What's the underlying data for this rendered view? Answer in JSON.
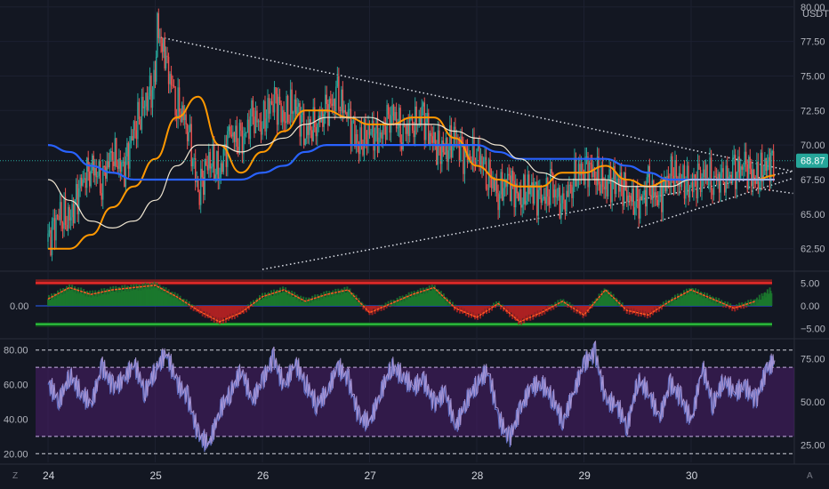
{
  "header": {
    "currency": "USDT"
  },
  "price_axis": {
    "ticks": [
      "80.00",
      "77.50",
      "75.00",
      "72.50",
      "70.00",
      "67.50",
      "65.00",
      "62.50"
    ],
    "current_price": "68.87"
  },
  "macd_axis": {
    "ticks": [
      "5.00",
      "0.00",
      "−5.00"
    ],
    "left_label": "0.00"
  },
  "rsi_axis": {
    "right_ticks": [
      "75.00",
      "50.00",
      "25.00"
    ],
    "left_ticks": [
      "80.00",
      "60.00",
      "40.00",
      "20.00"
    ]
  },
  "time_axis": {
    "ticks": [
      "24",
      "25",
      "26",
      "27",
      "28",
      "29",
      "30"
    ]
  },
  "corner_buttons": {
    "left": "Z",
    "right": "A"
  },
  "colors": {
    "background": "#131722",
    "up_candle": "#26a69a",
    "down_candle": "#ef5350",
    "ma_orange": "#ff9800",
    "ma_blue": "#2962ff",
    "ma_cream": "#f0e6d2",
    "rsi_line": "#b39ddb",
    "rsi_band": "#4a1d6a",
    "macd_green": "#1b7a2e",
    "macd_red": "#b22222",
    "price_tag": "#26a69a"
  },
  "chart_data": [
    {
      "type": "candlestick",
      "title": "",
      "x_ticks": [
        "24",
        "25",
        "26",
        "27",
        "28",
        "29",
        "30"
      ],
      "ylim": [
        61.0,
        80.5
      ],
      "current_price": 68.87,
      "close_series": {
        "x_days": [
          24.0,
          24.1,
          24.2,
          24.3,
          24.4,
          24.5,
          24.6,
          24.7,
          24.8,
          24.9,
          25.0,
          25.02,
          25.1,
          25.2,
          25.3,
          25.4,
          25.5,
          25.6,
          25.7,
          25.8,
          25.9,
          26.0,
          26.1,
          26.2,
          26.3,
          26.4,
          26.5,
          26.6,
          26.7,
          26.8,
          26.9,
          27.0,
          27.1,
          27.2,
          27.3,
          27.4,
          27.5,
          27.6,
          27.7,
          27.8,
          27.9,
          28.0,
          28.1,
          28.2,
          28.3,
          28.4,
          28.5,
          28.6,
          28.7,
          28.8,
          28.9,
          29.0,
          29.1,
          29.2,
          29.3,
          29.4,
          29.5,
          29.6,
          29.7,
          29.8,
          29.9,
          30.0,
          30.1,
          30.2,
          30.3,
          30.4,
          30.5,
          30.6,
          30.7,
          30.78
        ],
        "close": [
          63.0,
          65.0,
          64.5,
          67.0,
          68.5,
          67.5,
          69.5,
          68.0,
          71.0,
          73.0,
          74.5,
          78.5,
          76.0,
          73.0,
          71.5,
          66.5,
          69.0,
          68.0,
          71.0,
          70.0,
          72.0,
          71.5,
          73.5,
          72.0,
          73.0,
          71.0,
          71.5,
          72.5,
          73.5,
          72.0,
          70.0,
          71.0,
          70.5,
          72.5,
          71.0,
          71.5,
          72.0,
          70.0,
          69.5,
          70.5,
          69.0,
          69.5,
          68.0,
          66.5,
          67.5,
          66.0,
          67.0,
          66.0,
          67.0,
          65.5,
          67.5,
          68.5,
          68.0,
          67.0,
          67.5,
          66.5,
          65.5,
          67.0,
          66.0,
          68.0,
          67.5,
          67.0,
          68.0,
          67.5,
          67.5,
          68.0,
          68.5,
          67.5,
          68.5,
          68.87
        ]
      },
      "moving_averages": [
        {
          "color": "#ff9800",
          "x_days": [
            24.0,
            24.2,
            24.4,
            24.6,
            24.8,
            25.0,
            25.2,
            25.4,
            25.6,
            25.8,
            26.0,
            26.2,
            26.4,
            26.6,
            26.8,
            27.0,
            27.2,
            27.4,
            27.6,
            27.8,
            28.0,
            28.2,
            28.4,
            28.6,
            28.8,
            29.0,
            29.2,
            29.4,
            29.6,
            29.8,
            30.0,
            30.2,
            30.4,
            30.6,
            30.78
          ],
          "y": [
            62.5,
            62.5,
            63.5,
            65.5,
            67.0,
            69.0,
            72.0,
            73.5,
            70.0,
            68.0,
            69.5,
            71.0,
            72.5,
            72.5,
            72.0,
            71.5,
            71.5,
            72.0,
            72.0,
            70.5,
            68.5,
            67.5,
            67.0,
            67.0,
            68.0,
            68.0,
            68.5,
            67.5,
            67.0,
            67.5,
            67.5,
            67.5,
            67.5,
            67.5,
            67.8
          ]
        },
        {
          "color": "#2962ff",
          "x_days": [
            24.0,
            24.2,
            24.4,
            24.6,
            24.8,
            25.0,
            25.2,
            25.4,
            25.6,
            25.8,
            26.0,
            26.2,
            26.4,
            26.6,
            26.8,
            27.0,
            27.2,
            27.4,
            27.6,
            27.8,
            28.0,
            28.2,
            28.4,
            28.6,
            28.8,
            29.0,
            29.2,
            29.4,
            29.6,
            29.8,
            30.0,
            30.2,
            30.4,
            30.6,
            30.78
          ],
          "y": [
            70.0,
            69.5,
            68.5,
            68.0,
            67.5,
            67.5,
            67.5,
            67.5,
            67.5,
            67.5,
            68.0,
            68.5,
            69.5,
            70.0,
            70.0,
            70.0,
            70.0,
            70.0,
            70.0,
            70.0,
            70.0,
            69.5,
            69.0,
            69.0,
            69.0,
            69.0,
            69.0,
            68.5,
            68.0,
            67.5,
            67.5,
            67.5,
            67.5,
            67.5,
            67.5
          ]
        },
        {
          "color": "#f0e6d2",
          "x_days": [
            24.0,
            24.2,
            24.4,
            24.6,
            24.8,
            25.0,
            25.2,
            25.4,
            25.6,
            25.8,
            26.0,
            26.2,
            26.4,
            26.6,
            26.8,
            27.0,
            27.2,
            27.4,
            27.6,
            27.8,
            28.0,
            28.2,
            28.4,
            28.6,
            28.8,
            29.0,
            29.2,
            29.4,
            29.6,
            29.8,
            30.0,
            30.2,
            30.4,
            30.6,
            30.78
          ],
          "y": [
            67.5,
            66.0,
            64.5,
            64.0,
            64.5,
            66.0,
            68.5,
            70.0,
            70.0,
            69.5,
            70.0,
            70.5,
            71.5,
            72.0,
            72.0,
            72.0,
            71.5,
            71.5,
            71.5,
            71.0,
            70.5,
            70.0,
            69.0,
            68.0,
            67.5,
            67.5,
            67.5,
            67.0,
            67.0,
            67.0,
            67.5,
            67.5,
            67.5,
            67.5,
            67.5
          ]
        }
      ],
      "trendlines": [
        {
          "style": "dotted",
          "from": [
            25.05,
            77.8
          ],
          "to": [
            30.95,
            68.1
          ]
        },
        {
          "style": "dotted",
          "from": [
            26.0,
            61.0
          ],
          "to": [
            30.95,
            68.1
          ]
        },
        {
          "style": "dotted",
          "from": [
            29.5,
            64.0
          ],
          "to": [
            30.95,
            67.6
          ]
        },
        {
          "style": "dotted",
          "from": [
            30.5,
            67.0
          ],
          "to": [
            30.95,
            66.5
          ]
        }
      ]
    },
    {
      "type": "oscillator",
      "title": "",
      "ylim": [
        -7,
        7
      ],
      "right_ticks": [
        5,
        0,
        -5
      ],
      "upper_band": 5,
      "lower_band": -4,
      "x_days": [
        24.0,
        24.2,
        24.4,
        24.6,
        24.8,
        25.0,
        25.2,
        25.4,
        25.6,
        25.8,
        26.0,
        26.2,
        26.4,
        26.6,
        26.8,
        27.0,
        27.2,
        27.4,
        27.6,
        27.8,
        28.0,
        28.2,
        28.4,
        28.6,
        28.8,
        29.0,
        29.2,
        29.4,
        29.6,
        29.8,
        30.0,
        30.2,
        30.4,
        30.6,
        30.78
      ],
      "values": [
        1.5,
        4.0,
        2.5,
        3.5,
        4.0,
        4.5,
        2.0,
        -1.0,
        -3.5,
        -1.5,
        2.0,
        3.5,
        1.0,
        2.5,
        3.5,
        -1.5,
        0.5,
        2.5,
        4.0,
        -0.5,
        -2.5,
        0.5,
        -3.5,
        -1.5,
        1.0,
        -2.0,
        3.5,
        -1.0,
        -2.0,
        1.0,
        3.5,
        1.5,
        -0.5,
        1.0,
        4.0
      ]
    },
    {
      "type": "line",
      "title": "",
      "ylim": [
        15,
        85
      ],
      "right_ticks": [
        75,
        50,
        25
      ],
      "left_ticks": [
        80,
        60,
        40,
        20
      ],
      "band": [
        30,
        70
      ],
      "outer_lines": [
        20,
        80
      ],
      "x_days": [
        24.0,
        24.1,
        24.2,
        24.3,
        24.4,
        24.5,
        24.6,
        24.7,
        24.8,
        24.9,
        25.0,
        25.1,
        25.2,
        25.3,
        25.4,
        25.5,
        25.6,
        25.7,
        25.8,
        25.9,
        26.0,
        26.1,
        26.2,
        26.3,
        26.4,
        26.5,
        26.6,
        26.7,
        26.8,
        26.9,
        27.0,
        27.1,
        27.2,
        27.3,
        27.4,
        27.5,
        27.6,
        27.7,
        27.8,
        27.9,
        28.0,
        28.1,
        28.2,
        28.3,
        28.4,
        28.5,
        28.6,
        28.7,
        28.8,
        28.9,
        29.0,
        29.1,
        29.2,
        29.3,
        29.4,
        29.5,
        29.6,
        29.7,
        29.8,
        29.9,
        30.0,
        30.1,
        30.2,
        30.3,
        30.4,
        30.5,
        30.6,
        30.7,
        30.78
      ],
      "values": [
        60,
        50,
        65,
        55,
        48,
        70,
        58,
        62,
        72,
        55,
        68,
        78,
        60,
        52,
        30,
        25,
        45,
        55,
        68,
        50,
        62,
        75,
        58,
        72,
        60,
        48,
        55,
        70,
        62,
        40,
        38,
        55,
        70,
        65,
        58,
        62,
        48,
        55,
        35,
        50,
        60,
        68,
        40,
        28,
        45,
        58,
        60,
        52,
        38,
        55,
        72,
        78,
        50,
        48,
        35,
        62,
        55,
        40,
        60,
        52,
        38,
        70,
        48,
        62,
        55,
        58,
        50,
        68,
        74
      ]
    }
  ]
}
